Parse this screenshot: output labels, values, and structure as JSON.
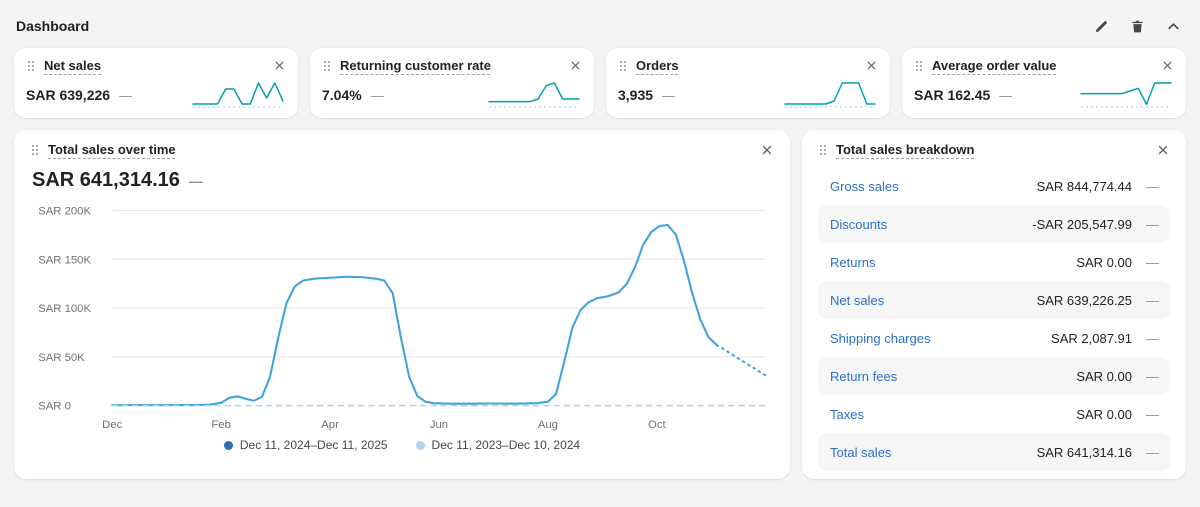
{
  "no_change": "—",
  "header": {
    "title": "Dashboard"
  },
  "icons": {
    "edit": "pencil",
    "delete": "trash",
    "collapse": "chevron-up",
    "close": "x",
    "drag": "six-dots"
  },
  "colors": {
    "spark": "#00a0ac",
    "spark_base": "#8fd3d9",
    "link": "#2c6ecb",
    "chart_line": "#3da3da",
    "chart_prev": "#a9d3ef"
  },
  "metric_cards": [
    {
      "title": "Net sales",
      "value": "SAR 639,226",
      "spark": [
        1,
        1,
        1,
        1,
        6,
        6,
        1,
        1,
        8,
        3,
        8,
        2
      ]
    },
    {
      "title": "Returning customer rate",
      "value": "7.04%",
      "spark": [
        2,
        2,
        2,
        2,
        2,
        2,
        3,
        8,
        9,
        3,
        3,
        3
      ]
    },
    {
      "title": "Orders",
      "value": "3,935",
      "spark": [
        1,
        1,
        1,
        1,
        1,
        1,
        2,
        8,
        8,
        8,
        1,
        1
      ]
    },
    {
      "title": "Average order value",
      "value": "SAR 162.45",
      "spark": [
        5,
        5,
        5,
        5,
        5,
        5,
        6,
        7,
        1,
        9,
        9,
        9
      ]
    }
  ],
  "sales_chart": {
    "title": "Total sales over time",
    "total": "SAR 641,314.16",
    "chart_data": {
      "type": "line",
      "title": "Total sales over time",
      "xlim": [
        0,
        12
      ],
      "ylim": [
        0,
        200000
      ],
      "y_ticks": [
        {
          "value": 200000,
          "label": "SAR 200K"
        },
        {
          "value": 150000,
          "label": "SAR 150K"
        },
        {
          "value": 100000,
          "label": "SAR 100K"
        },
        {
          "value": 50000,
          "label": "SAR 50K"
        },
        {
          "value": 0,
          "label": "SAR 0"
        }
      ],
      "x_ticks": [
        {
          "x": 0,
          "label": "Dec"
        },
        {
          "x": 2,
          "label": "Feb"
        },
        {
          "x": 4,
          "label": "Apr"
        },
        {
          "x": 6,
          "label": "Jun"
        },
        {
          "x": 8,
          "label": "Aug"
        },
        {
          "x": 10,
          "label": "Oct"
        }
      ],
      "series": [
        {
          "name": "Dec 11, 2024–Dec 11, 2025",
          "style": "solid",
          "color": "#3da3da",
          "points": [
            [
              0,
              500
            ],
            [
              0.5,
              500
            ],
            [
              1.0,
              500
            ],
            [
              1.5,
              600
            ],
            [
              1.8,
              1000
            ],
            [
              2.0,
              3000
            ],
            [
              2.15,
              8000
            ],
            [
              2.3,
              9500
            ],
            [
              2.45,
              7000
            ],
            [
              2.6,
              5000
            ],
            [
              2.75,
              9000
            ],
            [
              2.9,
              30000
            ],
            [
              3.05,
              70000
            ],
            [
              3.2,
              105000
            ],
            [
              3.35,
              122000
            ],
            [
              3.5,
              128000
            ],
            [
              3.7,
              130000
            ],
            [
              4.0,
              131000
            ],
            [
              4.3,
              132000
            ],
            [
              4.6,
              131500
            ],
            [
              4.85,
              130000
            ],
            [
              5.0,
              128000
            ],
            [
              5.15,
              115000
            ],
            [
              5.3,
              70000
            ],
            [
              5.45,
              30000
            ],
            [
              5.6,
              10000
            ],
            [
              5.75,
              4000
            ],
            [
              5.9,
              2500
            ],
            [
              6.2,
              2000
            ],
            [
              6.6,
              2000
            ],
            [
              7.0,
              2200
            ],
            [
              7.4,
              2000
            ],
            [
              7.8,
              2500
            ],
            [
              8.0,
              4000
            ],
            [
              8.15,
              12000
            ],
            [
              8.3,
              45000
            ],
            [
              8.45,
              80000
            ],
            [
              8.6,
              98000
            ],
            [
              8.75,
              106000
            ],
            [
              8.9,
              110000
            ],
            [
              9.1,
              112000
            ],
            [
              9.3,
              116000
            ],
            [
              9.45,
              125000
            ],
            [
              9.6,
              142000
            ],
            [
              9.75,
              165000
            ],
            [
              9.9,
              178000
            ],
            [
              10.05,
              184000
            ],
            [
              10.2,
              185000
            ],
            [
              10.35,
              175000
            ],
            [
              10.5,
              148000
            ],
            [
              10.65,
              115000
            ],
            [
              10.8,
              88000
            ],
            [
              10.95,
              70000
            ],
            [
              11.1,
              62000
            ]
          ]
        },
        {
          "name": "Dec 11, 2024–Dec 11, 2025 (projection)",
          "style": "dotted",
          "color": "#3da3da",
          "points": [
            [
              11.1,
              62000
            ],
            [
              11.25,
              57000
            ],
            [
              11.45,
              50000
            ],
            [
              11.65,
              43000
            ],
            [
              11.85,
              36000
            ],
            [
              12.0,
              31000
            ]
          ]
        },
        {
          "name": "Dec 11, 2023–Dec 10, 2024",
          "style": "dashed",
          "color": "#a9d3ef",
          "points": [
            [
              0,
              0
            ],
            [
              12,
              0
            ]
          ]
        }
      ],
      "legend": [
        {
          "label": "Dec 11, 2024–Dec 11, 2025",
          "color": "#2b70b6"
        },
        {
          "label": "Dec 11, 2023–Dec 10, 2024",
          "color": "#a9d3ef"
        }
      ]
    }
  },
  "breakdown": {
    "title": "Total sales breakdown",
    "rows": [
      {
        "label": "Gross sales",
        "value": "SAR 844,774.44"
      },
      {
        "label": "Discounts",
        "value": "-SAR 205,547.99"
      },
      {
        "label": "Returns",
        "value": "SAR 0.00"
      },
      {
        "label": "Net sales",
        "value": "SAR 639,226.25"
      },
      {
        "label": "Shipping charges",
        "value": "SAR 2,087.91"
      },
      {
        "label": "Return fees",
        "value": "SAR 0.00"
      },
      {
        "label": "Taxes",
        "value": "SAR 0.00"
      },
      {
        "label": "Total sales",
        "value": "SAR 641,314.16"
      }
    ]
  }
}
